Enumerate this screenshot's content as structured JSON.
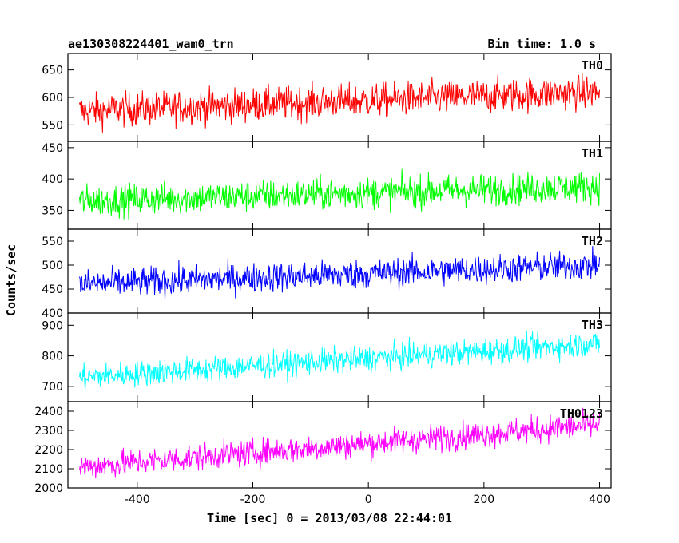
{
  "chart_data": {
    "type": "line",
    "title": "ae130308224401_wam0_trn",
    "subtitle": "Bin time: 1.0 s",
    "xlabel": "Time [sec] 0 = 2013/03/08 22:44:01",
    "ylabel": "Counts/sec",
    "xlim": [
      -520,
      420
    ],
    "x_ticks": [
      -400,
      -200,
      0,
      200,
      400
    ],
    "x_range_data": [
      -500,
      400
    ],
    "bin_time_s": 1.0,
    "panels": [
      {
        "name": "TH0",
        "color": "#ff0000",
        "ylim": [
          520,
          680
        ],
        "yticks": [
          550,
          600,
          650
        ],
        "trend": {
          "start": 575,
          "end": 610
        },
        "scatter": 22
      },
      {
        "name": "TH1",
        "color": "#00ff00",
        "ylim": [
          320,
          460
        ],
        "yticks": [
          350,
          400,
          450
        ],
        "trend": {
          "start": 365,
          "end": 388
        },
        "scatter": 18
      },
      {
        "name": "TH2",
        "color": "#0000ff",
        "ylim": [
          400,
          575
        ],
        "yticks": [
          400,
          450,
          500,
          550
        ],
        "trend": {
          "start": 460,
          "end": 500
        },
        "scatter": 22
      },
      {
        "name": "TH3",
        "color": "#00ffff",
        "ylim": [
          650,
          940
        ],
        "yticks": [
          700,
          800,
          900
        ],
        "trend": {
          "start": 730,
          "end": 840
        },
        "scatter": 30
      },
      {
        "name": "TH0123",
        "color": "#ff00ff",
        "ylim": [
          2000,
          2450
        ],
        "yticks": [
          2000,
          2100,
          2200,
          2300,
          2400
        ],
        "trend": {
          "start": 2110,
          "end": 2330
        },
        "scatter": 50
      }
    ],
    "grid": false,
    "legend": "panel labels top-right"
  }
}
